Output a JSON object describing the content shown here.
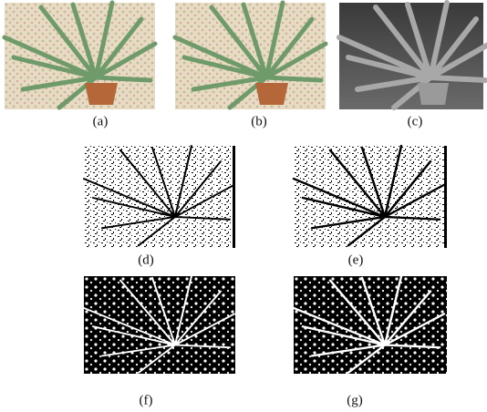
{
  "figure": {
    "panels": [
      {
        "label": "(a)"
      },
      {
        "label": "(b)"
      },
      {
        "label": "(c)"
      },
      {
        "label": "(d)"
      },
      {
        "label": "(e)"
      },
      {
        "label": "(f)"
      },
      {
        "label": "(g)"
      }
    ]
  }
}
